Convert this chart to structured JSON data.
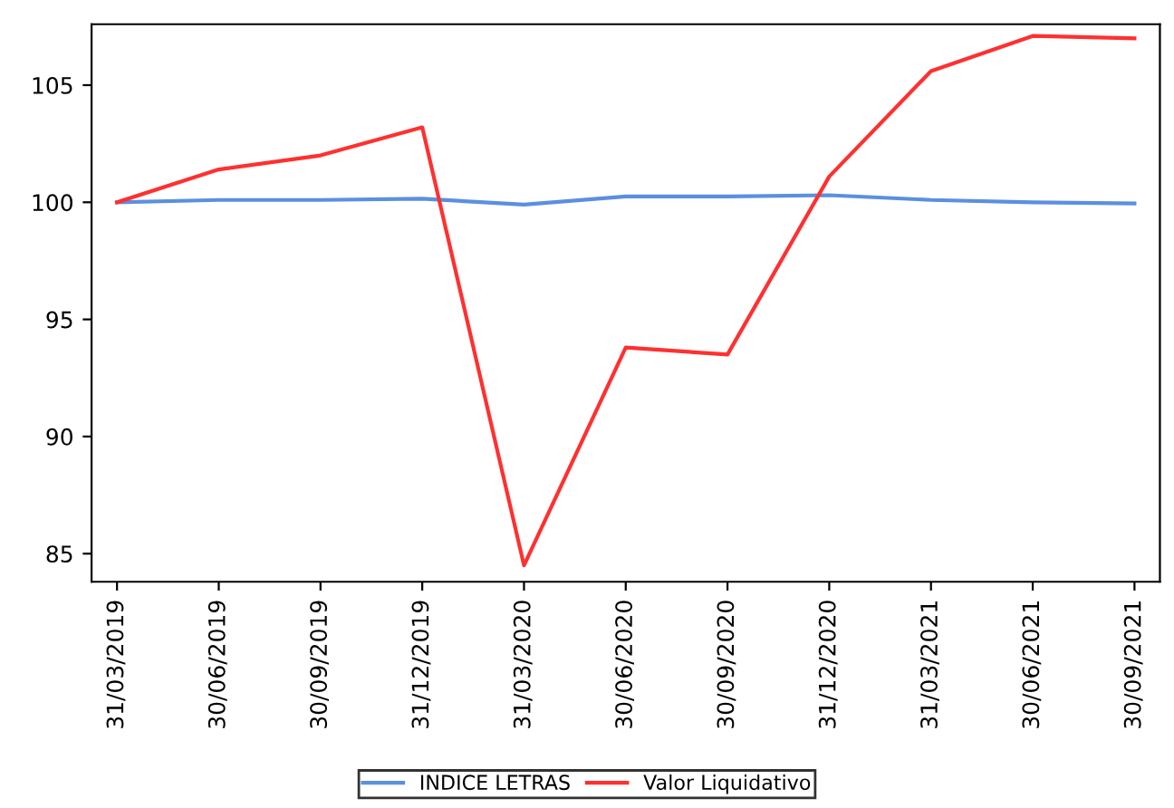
{
  "chart_data": {
    "type": "line",
    "categories": [
      "31/03/2019",
      "30/06/2019",
      "30/09/2019",
      "31/12/2019",
      "31/03/2020",
      "30/06/2020",
      "30/09/2020",
      "31/12/2020",
      "31/03/2021",
      "30/06/2021",
      "30/09/2021"
    ],
    "series": [
      {
        "name": "INDICE LETRAS",
        "color": "#5b8fe0",
        "values": [
          100,
          100.1,
          100.1,
          100.15,
          99.9,
          100.25,
          100.25,
          100.3,
          100.1,
          100.0,
          99.95
        ]
      },
      {
        "name": "Valor Liquidativo",
        "color": "#ff3030",
        "values": [
          100,
          101.4,
          102.0,
          103.2,
          84.5,
          93.8,
          93.5,
          101.1,
          105.6,
          107.1,
          107.0
        ]
      }
    ],
    "ylim": [
      83.8,
      107.6
    ],
    "yticks": [
      85,
      90,
      95,
      100,
      105
    ],
    "grid": false,
    "legend": "bottom",
    "marker": "none",
    "line_style": "solid"
  }
}
